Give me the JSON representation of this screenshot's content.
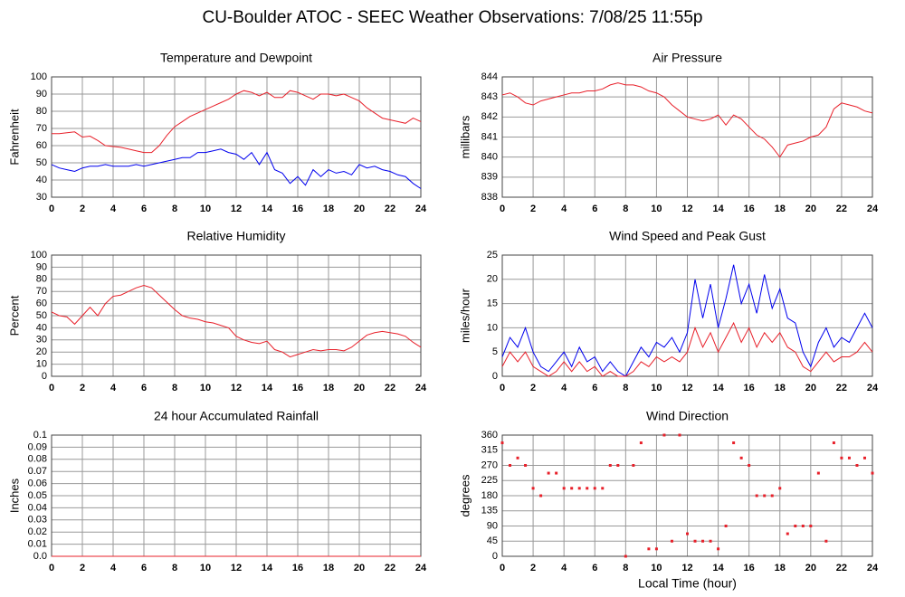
{
  "title": "CU-Boulder ATOC - SEEC Weather Observations: 7/08/25 11:55p",
  "chart_data": [
    {
      "type": "line",
      "title": "Temperature and Dewpoint",
      "y_label": "Fahrenheit",
      "x": [
        0,
        0.5,
        1,
        1.5,
        2,
        2.5,
        3,
        3.5,
        4,
        4.5,
        5,
        5.5,
        6,
        6.5,
        7,
        7.5,
        8,
        8.5,
        9,
        9.5,
        10,
        10.5,
        11,
        11.5,
        12,
        12.5,
        13,
        13.5,
        14,
        14.5,
        15,
        15.5,
        16,
        16.5,
        17,
        17.5,
        18,
        18.5,
        19,
        19.5,
        20,
        20.5,
        21,
        21.5,
        22,
        22.5,
        23,
        23.5,
        24
      ],
      "xlim": [
        0,
        24
      ],
      "xticks": [
        0,
        2,
        4,
        6,
        8,
        10,
        12,
        14,
        16,
        18,
        20,
        22,
        24
      ],
      "ylim": [
        30,
        100
      ],
      "yticks": [
        30,
        40,
        50,
        60,
        70,
        80,
        90,
        100
      ],
      "grid": true,
      "series": [
        {
          "color": "#e8202a",
          "values": [
            67,
            67,
            67.5,
            68,
            65,
            65.5,
            63,
            60,
            59.5,
            59,
            58,
            57,
            56,
            56,
            60,
            66,
            71,
            74,
            77,
            79,
            81,
            83,
            85,
            87,
            90,
            92,
            91,
            89,
            91,
            88,
            88,
            92,
            91,
            89,
            87,
            90,
            90,
            89,
            90,
            88,
            86,
            82,
            79,
            76,
            75,
            74,
            73,
            76,
            74
          ]
        },
        {
          "color": "#0000ee",
          "values": [
            49,
            47,
            46,
            45,
            47,
            48,
            48,
            49,
            48,
            48,
            48,
            49,
            48,
            49,
            50,
            51,
            52,
            53,
            53,
            56,
            56,
            57,
            58,
            56,
            55,
            52,
            56,
            49,
            56,
            46,
            44,
            38,
            42,
            37,
            46,
            42,
            46,
            44,
            45,
            43,
            49,
            47,
            48,
            46,
            45,
            43,
            42,
            38,
            35
          ]
        }
      ]
    },
    {
      "type": "line",
      "title": "Air Pressure",
      "y_label": "millibars",
      "x": [
        0,
        0.5,
        1,
        1.5,
        2,
        2.5,
        3,
        3.5,
        4,
        4.5,
        5,
        5.5,
        6,
        6.5,
        7,
        7.5,
        8,
        8.5,
        9,
        9.5,
        10,
        10.5,
        11,
        11.5,
        12,
        12.5,
        13,
        13.5,
        14,
        14.5,
        15,
        15.5,
        16,
        16.5,
        17,
        17.5,
        18,
        18.5,
        19,
        19.5,
        20,
        20.5,
        21,
        21.5,
        22,
        22.5,
        23,
        23.5,
        24
      ],
      "xlim": [
        0,
        24
      ],
      "xticks": [
        0,
        2,
        4,
        6,
        8,
        10,
        12,
        14,
        16,
        18,
        20,
        22,
        24
      ],
      "ylim": [
        838,
        844
      ],
      "yticks": [
        838,
        839,
        840,
        841,
        842,
        843,
        844
      ],
      "grid": true,
      "series": [
        {
          "color": "#e8202a",
          "values": [
            843.1,
            843.2,
            843.0,
            842.7,
            842.6,
            842.8,
            842.9,
            843.0,
            843.1,
            843.2,
            843.2,
            843.3,
            843.3,
            843.4,
            843.6,
            843.7,
            843.6,
            843.6,
            843.5,
            843.3,
            843.2,
            843.0,
            842.6,
            842.3,
            842.0,
            841.9,
            841.8,
            841.9,
            842.1,
            841.6,
            842.1,
            841.9,
            841.5,
            841.1,
            840.9,
            840.5,
            840.0,
            840.6,
            840.7,
            840.8,
            841.0,
            841.1,
            841.5,
            842.4,
            842.7,
            842.6,
            842.5,
            842.3,
            842.2
          ]
        }
      ]
    },
    {
      "type": "line",
      "title": "Relative Humidity",
      "y_label": "Percent",
      "x": [
        0,
        0.5,
        1,
        1.5,
        2,
        2.5,
        3,
        3.5,
        4,
        4.5,
        5,
        5.5,
        6,
        6.5,
        7,
        7.5,
        8,
        8.5,
        9,
        9.5,
        10,
        10.5,
        11,
        11.5,
        12,
        12.5,
        13,
        13.5,
        14,
        14.5,
        15,
        15.5,
        16,
        16.5,
        17,
        17.5,
        18,
        18.5,
        19,
        19.5,
        20,
        20.5,
        21,
        21.5,
        22,
        22.5,
        23,
        23.5,
        24
      ],
      "xlim": [
        0,
        24
      ],
      "xticks": [
        0,
        2,
        4,
        6,
        8,
        10,
        12,
        14,
        16,
        18,
        20,
        22,
        24
      ],
      "ylim": [
        0,
        100
      ],
      "yticks": [
        0,
        10,
        20,
        30,
        40,
        50,
        60,
        70,
        80,
        90,
        100
      ],
      "grid": true,
      "series": [
        {
          "color": "#e8202a",
          "values": [
            53,
            50,
            49,
            43,
            50,
            57,
            50,
            60,
            66,
            67,
            70,
            73,
            75,
            73,
            67,
            61,
            55,
            50,
            48,
            47,
            45,
            44,
            42,
            40,
            33,
            30,
            28,
            27,
            29,
            22,
            20,
            16,
            18,
            20,
            22,
            21,
            22,
            22,
            21,
            24,
            29,
            34,
            36,
            37,
            36,
            35,
            33,
            28,
            24
          ]
        }
      ]
    },
    {
      "type": "line",
      "title": "Wind Speed and Peak Gust",
      "y_label": "miles/hour",
      "x": [
        0,
        0.5,
        1,
        1.5,
        2,
        2.5,
        3,
        3.5,
        4,
        4.5,
        5,
        5.5,
        6,
        6.5,
        7,
        7.5,
        8,
        8.5,
        9,
        9.5,
        10,
        10.5,
        11,
        11.5,
        12,
        12.5,
        13,
        13.5,
        14,
        14.5,
        15,
        15.5,
        16,
        16.5,
        17,
        17.5,
        18,
        18.5,
        19,
        19.5,
        20,
        20.5,
        21,
        21.5,
        22,
        22.5,
        23,
        23.5,
        24
      ],
      "xlim": [
        0,
        24
      ],
      "xticks": [
        0,
        2,
        4,
        6,
        8,
        10,
        12,
        14,
        16,
        18,
        20,
        22,
        24
      ],
      "ylim": [
        0,
        25
      ],
      "yticks": [
        0,
        5,
        10,
        15,
        20,
        25
      ],
      "grid": true,
      "series": [
        {
          "color": "#0000ee",
          "values": [
            4,
            8,
            6,
            10,
            5,
            2,
            1,
            3,
            5,
            2,
            6,
            3,
            4,
            1,
            3,
            1,
            0,
            3,
            6,
            4,
            7,
            6,
            8,
            5,
            9,
            20,
            12,
            19,
            10,
            16,
            23,
            15,
            19,
            13,
            21,
            14,
            18,
            12,
            11,
            5,
            2,
            7,
            10,
            6,
            8,
            7,
            10,
            13,
            10
          ]
        },
        {
          "color": "#e8202a",
          "values": [
            2,
            5,
            3,
            5,
            2,
            1,
            0,
            1,
            3,
            1,
            3,
            1,
            2,
            0,
            1,
            0,
            0,
            1,
            3,
            2,
            4,
            3,
            4,
            3,
            5,
            10,
            6,
            9,
            5,
            8,
            11,
            7,
            10,
            6,
            9,
            7,
            9,
            6,
            5,
            2,
            1,
            3,
            5,
            3,
            4,
            4,
            5,
            7,
            5
          ]
        }
      ]
    },
    {
      "type": "line",
      "title": "24 hour Accumulated Rainfall",
      "y_label": "Inches",
      "x": [
        0,
        0.5,
        1,
        1.5,
        2,
        2.5,
        3,
        3.5,
        4,
        4.5,
        5,
        5.5,
        6,
        6.5,
        7,
        7.5,
        8,
        8.5,
        9,
        9.5,
        10,
        10.5,
        11,
        11.5,
        12,
        12.5,
        13,
        13.5,
        14,
        14.5,
        15,
        15.5,
        16,
        16.5,
        17,
        17.5,
        18,
        18.5,
        19,
        19.5,
        20,
        20.5,
        21,
        21.5,
        22,
        22.5,
        23,
        23.5,
        24
      ],
      "xlim": [
        0,
        24
      ],
      "xticks": [
        0,
        2,
        4,
        6,
        8,
        10,
        12,
        14,
        16,
        18,
        20,
        22,
        24
      ],
      "ylim": [
        0,
        0.1
      ],
      "yticks": [
        {
          "value": 0,
          "label": "0.0"
        },
        0.01,
        0.02,
        0.03,
        0.04,
        0.05,
        0.06,
        0.07,
        0.08,
        0.09,
        0.1
      ],
      "grid": true,
      "series": [
        {
          "color": "#e8202a",
          "values": [
            0,
            0,
            0,
            0,
            0,
            0,
            0,
            0,
            0,
            0,
            0,
            0,
            0,
            0,
            0,
            0,
            0,
            0,
            0,
            0,
            0,
            0,
            0,
            0,
            0,
            0,
            0,
            0,
            0,
            0,
            0,
            0,
            0,
            0,
            0,
            0,
            0,
            0,
            0,
            0,
            0,
            0,
            0,
            0,
            0,
            0,
            0,
            0,
            0
          ]
        }
      ]
    },
    {
      "type": "scatter",
      "title": "Wind Direction",
      "y_label": "degrees",
      "x_label": "Local Time (hour)",
      "x": [
        0,
        0.5,
        1,
        1.5,
        2,
        2.5,
        3,
        3.5,
        4,
        4.5,
        5,
        5.5,
        6,
        6.5,
        7,
        7.5,
        8,
        8.5,
        9,
        9.5,
        10,
        10.5,
        11,
        11.5,
        12,
        12.5,
        13,
        13.5,
        14,
        14.5,
        15,
        15.5,
        16,
        16.5,
        17,
        17.5,
        18,
        18.5,
        19,
        19.5,
        20,
        20.5,
        21,
        21.5,
        22,
        22.5,
        23,
        23.5,
        24
      ],
      "xlim": [
        0,
        24
      ],
      "xticks": [
        0,
        2,
        4,
        6,
        8,
        10,
        12,
        14,
        16,
        18,
        20,
        22,
        24
      ],
      "ylim": [
        0,
        360
      ],
      "yticks": [
        0,
        45,
        90,
        135,
        180,
        225,
        270,
        315,
        360
      ],
      "grid": true,
      "series": [
        {
          "color": "#e8202a",
          "values": [
            337,
            270,
            292,
            270,
            202,
            180,
            247,
            247,
            202,
            202,
            202,
            202,
            202,
            202,
            270,
            270,
            0,
            270,
            337,
            22,
            22,
            360,
            45,
            360,
            67,
            45,
            45,
            45,
            22,
            90,
            337,
            292,
            270,
            180,
            180,
            180,
            202,
            67,
            90,
            90,
            90,
            247,
            45,
            337,
            292,
            292,
            270,
            292,
            247
          ]
        }
      ]
    }
  ]
}
